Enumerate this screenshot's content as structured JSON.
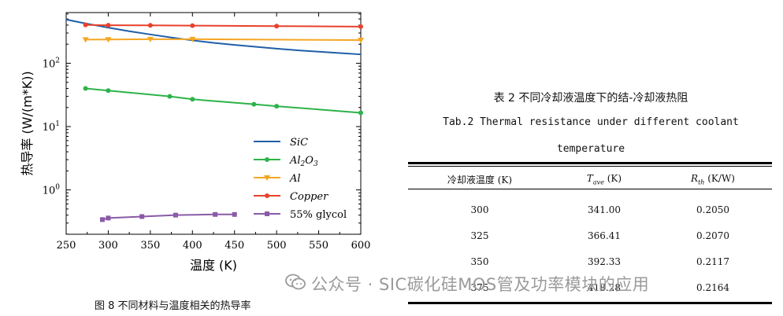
{
  "figure": {
    "caption": "图 8  不同材料与温度相关的热导率",
    "chart_data": {
      "type": "line",
      "xlabel": "温度 (K)",
      "ylabel": "热导率 (W/(m*K))",
      "xlim": [
        250,
        600
      ],
      "ylim_log10": [
        -0.7,
        2.8
      ],
      "log_y": true,
      "x_ticks": [
        250,
        300,
        350,
        400,
        450,
        500,
        550,
        600
      ],
      "y_ticks": [
        {
          "value": 1,
          "label": "10",
          "exp": "0"
        },
        {
          "value": 10,
          "label": "10",
          "exp": "1"
        },
        {
          "value": 100,
          "label": "10",
          "exp": "2"
        }
      ],
      "legend_position": "bottom-right",
      "series": [
        {
          "name": "SiC",
          "color": "#1f5ea8",
          "marker": "none",
          "italic": true,
          "x": [
            250,
            275,
            300,
            325,
            350,
            375,
            400,
            425,
            450,
            475,
            500,
            525,
            550,
            575,
            600
          ],
          "y": [
            490,
            420,
            365,
            320,
            285,
            255,
            230,
            210,
            195,
            182,
            170,
            160,
            152,
            145,
            138
          ]
        },
        {
          "name": "Al2O3",
          "color": "#2db34a",
          "marker": "circle",
          "italic": true,
          "x": [
            273,
            300,
            373,
            400,
            473,
            500,
            600
          ],
          "y": [
            40,
            37,
            30,
            27,
            22.5,
            21,
            16.5
          ]
        },
        {
          "name": "Al",
          "color": "#f5a623",
          "marker": "triangle",
          "italic": true,
          "x": [
            273,
            300,
            350,
            400,
            600
          ],
          "y": [
            236,
            237,
            240,
            240,
            232
          ]
        },
        {
          "name": "Copper",
          "color": "#e8412c",
          "marker": "circle",
          "italic": true,
          "x": [
            273,
            300,
            350,
            400,
            500,
            600
          ],
          "y": [
            403,
            398,
            396,
            393,
            386,
            379
          ]
        },
        {
          "name": "55% glycol",
          "color": "#8a5aa8",
          "marker": "square",
          "italic": false,
          "x": [
            293,
            300,
            340,
            380,
            427,
            450
          ],
          "y": [
            0.34,
            0.36,
            0.38,
            0.4,
            0.41,
            0.41
          ]
        }
      ]
    }
  },
  "table": {
    "title_cn": "表 2  不同冷却液温度下的结-冷却液热阻",
    "title_en_1": "Tab.2 Thermal resistance under different coolant",
    "title_en_2": "temperature",
    "headers": [
      {
        "main": "冷却液温度 (K)",
        "sym": "",
        "sub": "",
        "unit": ""
      },
      {
        "main": "",
        "sym": "T",
        "sub": "ave",
        "unit": " (K)"
      },
      {
        "main": "",
        "sym": "R",
        "sub": "th",
        "unit": " (K/W)"
      }
    ],
    "rows": [
      [
        "300",
        "341.00",
        "0.2050"
      ],
      [
        "325",
        "366.41",
        "0.2070"
      ],
      [
        "350",
        "392.33",
        "0.2117"
      ],
      [
        "375",
        "418.28",
        "0.2164"
      ]
    ]
  },
  "watermark": "公众号 · SIC碳化硅MOS管及功率模块的应用"
}
